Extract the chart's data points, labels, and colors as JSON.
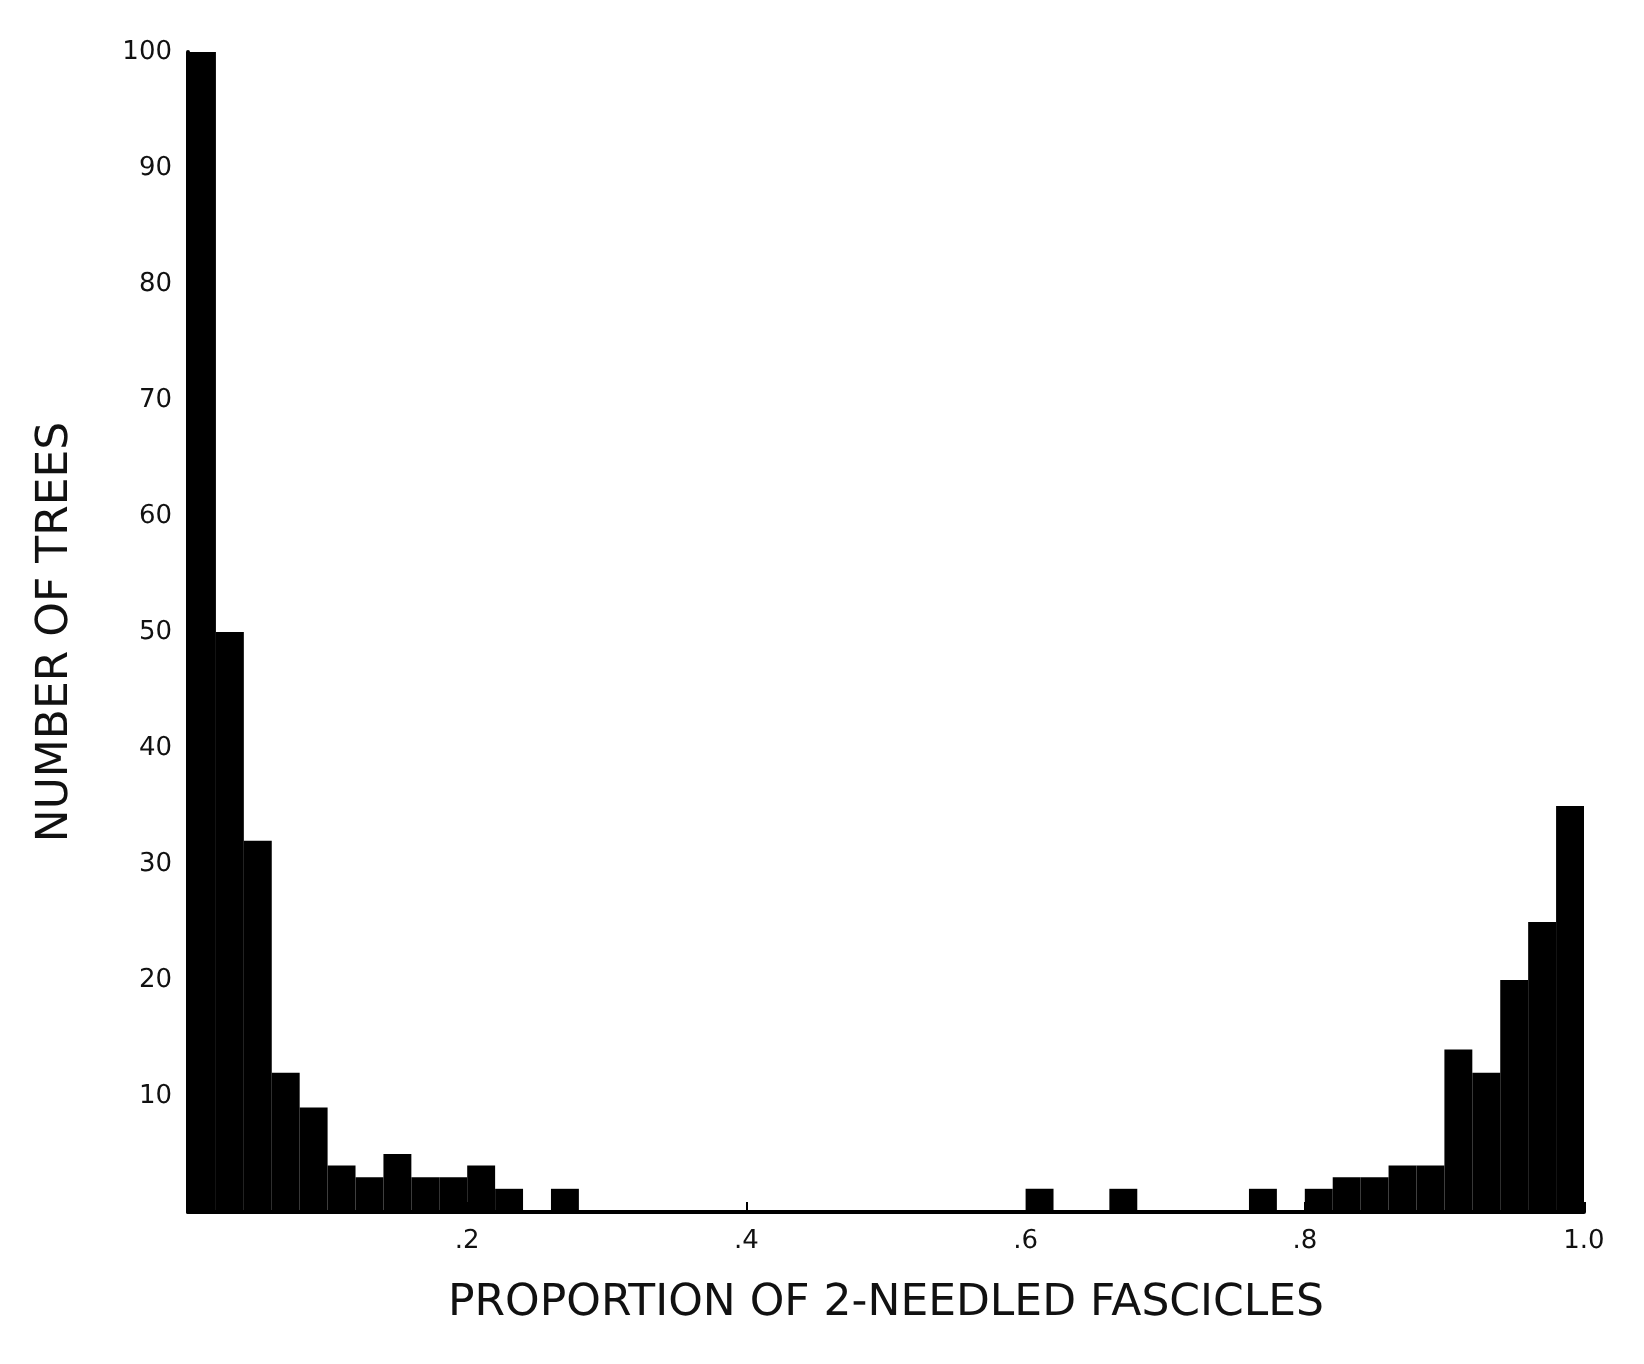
{
  "chart_data": {
    "type": "histogram",
    "xlabel": "PROPORTION OF 2-NEEDLED FASCICLES",
    "ylabel": "NUMBER OF TREES",
    "color": "#000000",
    "bins": [
      0,
      0.02,
      0.04,
      0.06,
      0.08,
      0.1,
      0.12,
      0.14,
      0.16,
      0.18,
      0.2,
      0.22,
      0.24,
      0.26,
      0.28,
      0.3,
      0.32,
      0.34,
      0.36,
      0.38,
      0.4,
      0.42,
      0.44,
      0.46,
      0.48,
      0.5,
      0.52,
      0.54,
      0.56,
      0.58,
      0.6,
      0.62,
      0.64,
      0.66,
      0.68,
      0.7,
      0.72,
      0.74,
      0.76,
      0.78,
      0.8,
      0.82,
      0.84,
      0.86,
      0.88,
      0.9,
      0.92,
      0.94,
      0.96,
      0.98,
      1.0
    ],
    "values": [
      100,
      50,
      32,
      12,
      9,
      4,
      3,
      5,
      3,
      3,
      4,
      2,
      0,
      2,
      0,
      0,
      0,
      0,
      0,
      0,
      0,
      0,
      0,
      0,
      0,
      0,
      0,
      0,
      0,
      0,
      2,
      0,
      0,
      2,
      0,
      0,
      0,
      0,
      2,
      0,
      2,
      3,
      3,
      4,
      4,
      14,
      12,
      20,
      25,
      35
    ],
    "xlim": [
      0,
      1.0
    ],
    "xticks": [
      {
        "value": 0.2,
        "label": ".2"
      },
      {
        "value": 0.4,
        "label": ".4"
      },
      {
        "value": 0.6,
        "label": ".6"
      },
      {
        "value": 0.8,
        "label": ".8"
      },
      {
        "value": 1.0,
        "label": "1.0"
      }
    ],
    "ylim": [
      0,
      100
    ],
    "yticks": [
      10,
      20,
      30,
      40,
      50,
      60,
      70,
      80,
      90,
      100
    ],
    "grid": false
  }
}
